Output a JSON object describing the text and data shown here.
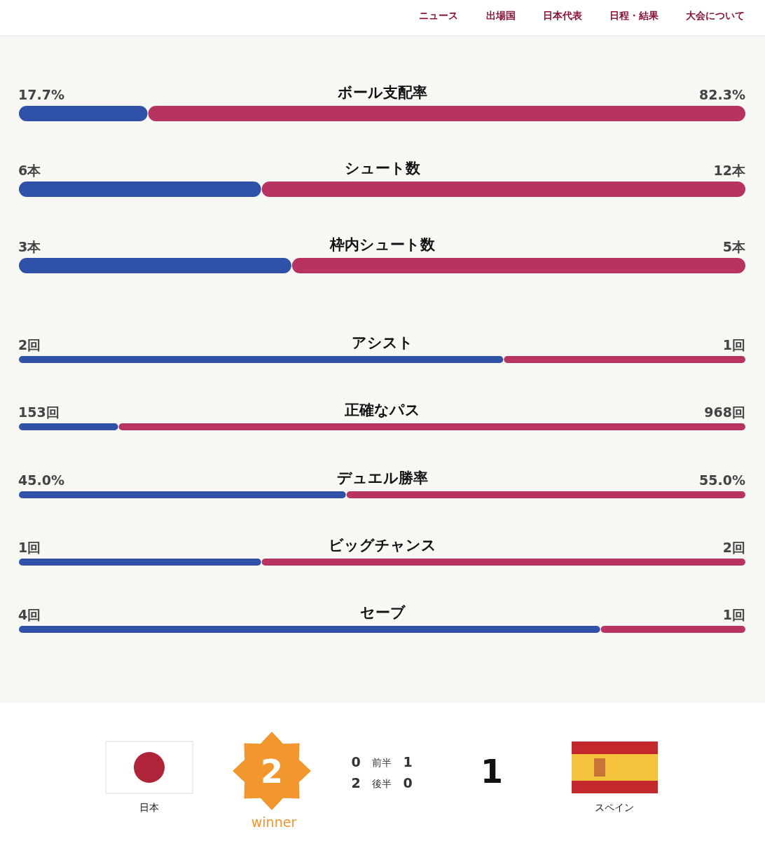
{
  "chart_data": [
    {
      "type": "other",
      "annotations": [
        "ニュース",
        "出場国",
        "日本代表",
        "日程・結果",
        "大会について"
      ]
    },
    {
      "type": "bar",
      "title": "ボール支配率",
      "categories": [
        null
      ],
      "stacked": true,
      "orientation": "horizontal",
      "series": [
        {
          "color": "#3051a8",
          "values": [
            17.7
          ],
          "value_labels": [
            "17.7%"
          ]
        },
        {
          "color": "#b73462",
          "values": [
            82.3
          ],
          "value_labels": [
            "82.3%"
          ]
        }
      ]
    },
    {
      "type": "bar",
      "title": "シュート数",
      "categories": [
        null
      ],
      "stacked": true,
      "orientation": "horizontal",
      "series": [
        {
          "color": "#3051a8",
          "values": [
            6
          ],
          "value_labels": [
            "6本"
          ]
        },
        {
          "color": "#b73462",
          "values": [
            12
          ],
          "value_labels": [
            "12本"
          ]
        }
      ]
    },
    {
      "type": "bar",
      "title": "枠内シュート数",
      "categories": [
        null
      ],
      "stacked": true,
      "orientation": "horizontal",
      "series": [
        {
          "color": "#3051a8",
          "values": [
            3
          ],
          "value_labels": [
            "3本"
          ]
        },
        {
          "color": "#b73462",
          "values": [
            5
          ],
          "value_labels": [
            "5本"
          ]
        }
      ]
    },
    {
      "type": "bar",
      "title": "アシスト",
      "categories": [
        null
      ],
      "stacked": true,
      "orientation": "horizontal",
      "series": [
        {
          "color": "#3051a8",
          "values": [
            2
          ],
          "value_labels": [
            "2回"
          ]
        },
        {
          "color": "#b73462",
          "values": [
            1
          ],
          "value_labels": [
            "1回"
          ]
        }
      ]
    },
    {
      "type": "bar",
      "title": "正確なパス",
      "categories": [
        null
      ],
      "stacked": true,
      "orientation": "horizontal",
      "series": [
        {
          "color": "#3051a8",
          "values": [
            153
          ],
          "value_labels": [
            "153回"
          ]
        },
        {
          "color": "#b73462",
          "values": [
            968
          ],
          "value_labels": [
            "968回"
          ]
        }
      ]
    },
    {
      "type": "bar",
      "title": "デュエル勝率",
      "categories": [
        null
      ],
      "stacked": true,
      "orientation": "horizontal",
      "series": [
        {
          "color": "#3051a8",
          "values": [
            45.0
          ],
          "value_labels": [
            "45.0%"
          ]
        },
        {
          "color": "#b73462",
          "values": [
            55.0
          ],
          "value_labels": [
            "55.0%"
          ]
        }
      ]
    },
    {
      "type": "bar",
      "title": "ビッグチャンス",
      "categories": [
        null
      ],
      "stacked": true,
      "orientation": "horizontal",
      "series": [
        {
          "color": "#3051a8",
          "values": [
            1
          ],
          "value_labels": [
            "1回"
          ]
        },
        {
          "color": "#b73462",
          "values": [
            2
          ],
          "value_labels": [
            "2回"
          ]
        }
      ]
    },
    {
      "type": "bar",
      "title": "セーブ",
      "categories": [
        null
      ],
      "stacked": true,
      "orientation": "horizontal",
      "series": [
        {
          "color": "#3051a8",
          "values": [
            4
          ],
          "value_labels": [
            "4回"
          ]
        },
        {
          "color": "#b73462",
          "values": [
            1
          ],
          "value_labels": [
            "1回"
          ]
        }
      ]
    },
    {
      "type": "other",
      "annotations": [
        "日本",
        "2",
        "winner",
        "0",
        "前半",
        "1",
        "2",
        "後半",
        "0",
        "1",
        "スペイン"
      ]
    }
  ]
}
